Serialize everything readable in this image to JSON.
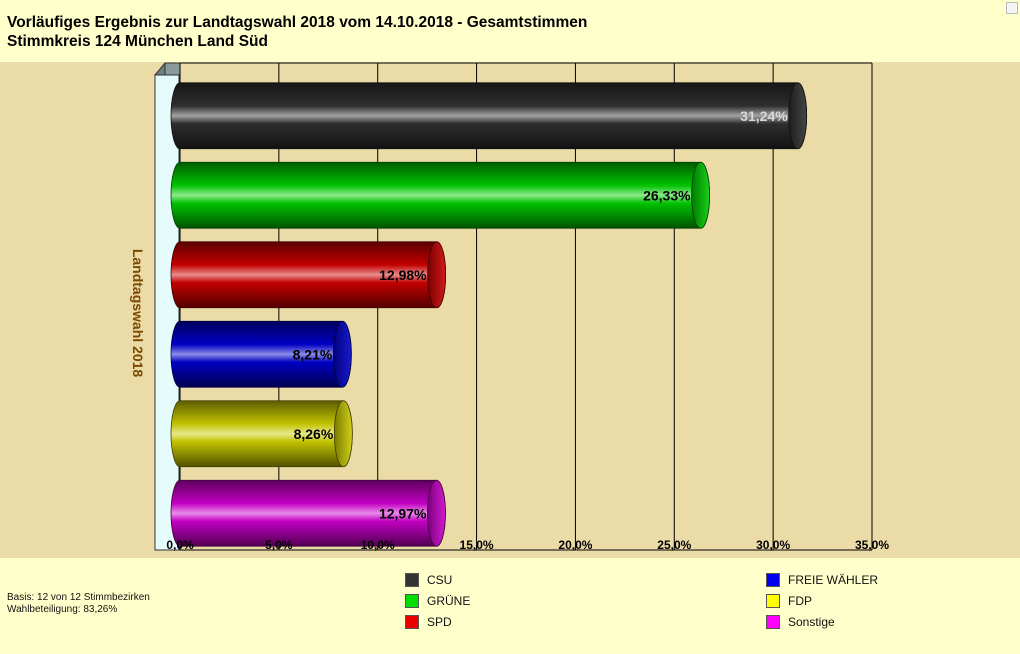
{
  "header": {
    "title_line1": "Vorläufiges Ergebnis zur Landtagswahl 2018 vom 14.10.2018 - Gesamtstimmen",
    "title_line2": "Stimmkreis 124 München Land Süd"
  },
  "footer": {
    "basis": "Basis: 12 von 12 Stimmbezirken",
    "wahlbeteiligung": "Wahlbeteiligung: 83,26%"
  },
  "chart_data": {
    "type": "bar",
    "orientation": "horizontal",
    "ylabel": "Landtagswahl 2018",
    "xlim": [
      0,
      35
    ],
    "xticks": [
      0,
      5,
      10,
      15,
      20,
      25,
      30,
      35
    ],
    "xtick_labels": [
      "0,0%",
      "5,0%",
      "10,0%",
      "15,0%",
      "20,0%",
      "25,0%",
      "30,0%",
      "35,0%"
    ],
    "grid": true,
    "legend_position": "bottom",
    "categories": [
      "CSU",
      "GRÜNE",
      "SPD",
      "FREIE WÄHLER",
      "FDP",
      "Sonstige"
    ],
    "values": [
      31.24,
      26.33,
      12.98,
      8.21,
      8.26,
      12.97
    ],
    "value_labels": [
      "31,24%",
      "26,33%",
      "12,98%",
      "8,21%",
      "8,26%",
      "12,97%"
    ],
    "colors": [
      "#303030",
      "#00cc00",
      "#cc0000",
      "#0000cc",
      "#cccc00",
      "#cc00cc"
    ],
    "legend_colors": [
      "#333333",
      "#00dd00",
      "#ee0000",
      "#0000ee",
      "#ffff00",
      "#ff00ff"
    ]
  }
}
